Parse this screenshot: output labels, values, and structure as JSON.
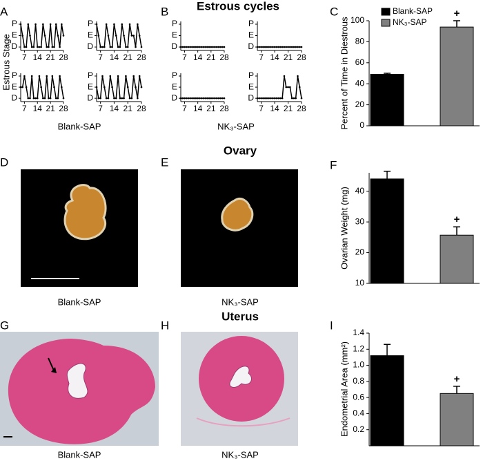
{
  "sections": [
    "Estrous cycles",
    "Ovary",
    "Uterus"
  ],
  "images": [
    {
      "panel": "D",
      "caption": "Blank-SAP"
    },
    {
      "panel": "E",
      "caption": "NK₃-SAP"
    },
    {
      "panel": "G",
      "caption": "Blank-SAP"
    },
    {
      "panel": "H",
      "caption": "NK₃-SAP"
    }
  ],
  "chart_data": [
    {
      "type": "line",
      "panel": "A",
      "ylabel": "Estrous Stage",
      "xlabel": "Blank-SAP",
      "color": "#000000",
      "markers": true,
      "x": [
        5,
        6,
        7,
        8,
        9,
        10,
        11,
        12,
        13,
        14,
        15,
        16,
        17,
        18,
        19,
        20,
        21,
        22,
        23,
        24,
        25,
        26,
        27,
        28
      ],
      "xlim": [
        5,
        28
      ],
      "xticks": [
        7,
        14,
        21,
        28
      ],
      "ylim": [
        -0.3,
        2
      ],
      "yticks": [
        {
          "value": 0,
          "label": "D"
        },
        {
          "value": 1,
          "label": "E"
        },
        {
          "value": 2,
          "label": "P"
        }
      ],
      "series": [
        {
          "values": [
            2,
            1,
            0,
            0,
            2,
            1,
            0,
            0,
            2,
            0,
            0,
            0,
            2,
            1,
            0,
            0,
            2,
            0,
            0,
            2,
            1,
            0,
            2,
            1
          ]
        },
        {
          "values": [
            2,
            1,
            0,
            0,
            0,
            2,
            1,
            0,
            0,
            2,
            1,
            0,
            0,
            2,
            1,
            0,
            0,
            2,
            1,
            1,
            0,
            2,
            1,
            0
          ]
        },
        {
          "values": [
            1,
            1,
            2,
            1,
            0,
            0,
            2,
            0,
            0,
            0,
            2,
            1,
            0,
            0,
            2,
            0,
            0,
            2,
            1,
            0,
            0,
            2,
            1,
            0
          ]
        },
        {
          "values": [
            1,
            0,
            0,
            2,
            1,
            0,
            0,
            2,
            1,
            0,
            0,
            2,
            0,
            0,
            0,
            2,
            1,
            0,
            0,
            2,
            1,
            0,
            2,
            1
          ]
        }
      ]
    },
    {
      "type": "line",
      "panel": "B",
      "xlabel": "NK₃-SAP",
      "color": "#000000",
      "markers": true,
      "x": [
        5,
        6,
        7,
        8,
        9,
        10,
        11,
        12,
        13,
        14,
        15,
        16,
        17,
        18,
        19,
        20,
        21,
        22,
        23,
        24,
        25,
        26,
        27,
        28
      ],
      "xlim": [
        5,
        28
      ],
      "xticks": [
        7,
        14,
        21,
        28
      ],
      "ylim": [
        -0.3,
        2
      ],
      "yticks": [
        {
          "value": 0,
          "label": "D"
        },
        {
          "value": 1,
          "label": "E"
        },
        {
          "value": 2,
          "label": "P"
        }
      ],
      "series": [
        {
          "values": [
            0,
            0,
            0,
            0,
            0,
            0,
            0,
            0,
            0,
            0,
            0,
            0,
            0,
            0,
            0,
            0,
            0,
            0,
            0,
            0,
            0,
            0,
            0,
            0
          ]
        },
        {
          "values": [
            0,
            0,
            0,
            0,
            0,
            0,
            0,
            0,
            0,
            0,
            0,
            0,
            0,
            0,
            0,
            0,
            0,
            0,
            0,
            0,
            0,
            0,
            0,
            0
          ]
        },
        {
          "values": [
            0,
            0,
            0,
            0,
            0,
            0,
            0,
            0,
            0,
            0,
            0,
            0,
            0,
            0,
            0,
            0,
            0,
            0,
            0,
            0,
            0,
            0,
            0,
            0
          ]
        },
        {
          "values": [
            0,
            0,
            0,
            0,
            0,
            0,
            0,
            0,
            0,
            0,
            0,
            0,
            0,
            0,
            2,
            1,
            1,
            1,
            0,
            0,
            0,
            2,
            1,
            0
          ]
        }
      ]
    },
    {
      "type": "bar",
      "panel": "C",
      "ylabel": "Percent of Time in Diestrous",
      "annotation": "+",
      "ylim": [
        0,
        100
      ],
      "yticks": [
        0,
        20,
        40,
        60,
        80,
        100
      ],
      "series": [
        {
          "name": "Blank-SAP",
          "color": "#000000",
          "values": [
            49
          ],
          "errors": [
            1
          ]
        },
        {
          "name": "NK₃-SAP",
          "color": "#808080",
          "values": [
            94
          ],
          "errors": [
            6
          ]
        }
      ]
    },
    {
      "type": "bar",
      "panel": "F",
      "ylabel": "Ovarian Weight (mg)",
      "annotation": "+",
      "ylim": [
        10,
        46
      ],
      "yticks": [
        10,
        20,
        30,
        40
      ],
      "series": [
        {
          "color": "#000000",
          "values": [
            44
          ],
          "errors": [
            2.5
          ]
        },
        {
          "color": "#808080",
          "values": [
            25.7
          ],
          "errors": [
            2.7
          ]
        }
      ]
    },
    {
      "type": "bar",
      "panel": "I",
      "ylabel": "Endometrial Area (mm²)",
      "annotation": "+",
      "ylim": [
        0,
        1.4
      ],
      "yticks": [
        0.2,
        0.4,
        0.6,
        0.8,
        {
          "value": 1,
          "label": "1.0"
        },
        1.2,
        1.4
      ],
      "series": [
        {
          "color": "#000000",
          "values": [
            1.12
          ],
          "errors": [
            0.14
          ]
        },
        {
          "color": "#808080",
          "values": [
            0.65
          ],
          "errors": [
            0.09
          ]
        }
      ]
    }
  ]
}
